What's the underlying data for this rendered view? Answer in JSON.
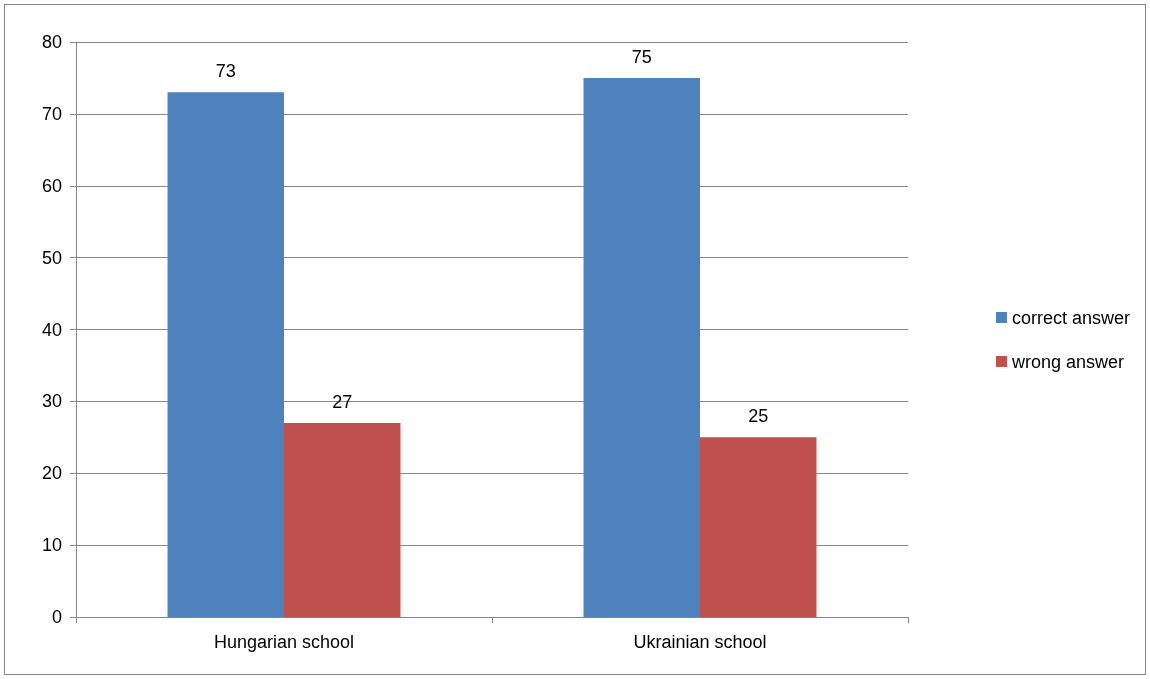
{
  "chart_data": {
    "type": "bar",
    "categories": [
      "Hungarian school",
      "Ukrainian school"
    ],
    "series": [
      {
        "name": "correct answer",
        "color": "#4f81bd",
        "values": [
          73,
          75
        ]
      },
      {
        "name": "wrong answer",
        "color": "#c0504d",
        "values": [
          27,
          25
        ]
      }
    ],
    "ylim": [
      0,
      80
    ],
    "yticks": [
      0,
      10,
      20,
      30,
      40,
      50,
      60,
      70,
      80
    ],
    "grid": "y",
    "legend": "right",
    "data_labels": true
  }
}
